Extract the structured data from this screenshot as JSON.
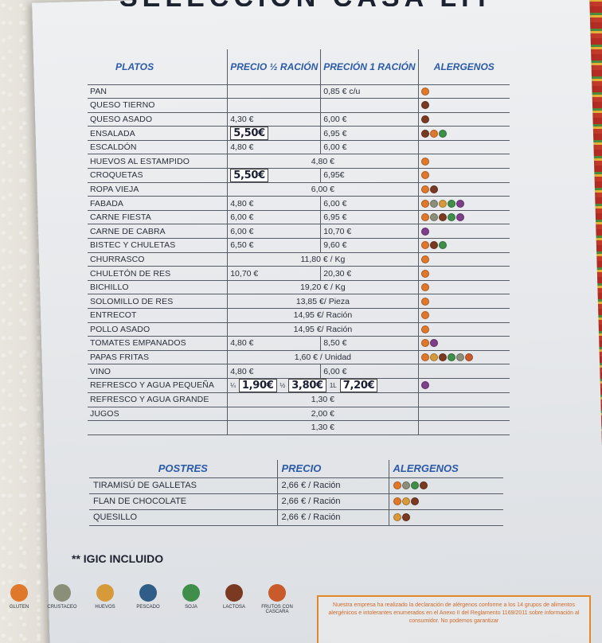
{
  "heading": "SELECCIÓN CASA LITO",
  "headers": {
    "dish": "PLATOS",
    "half": "PRECIO ½ RACIÓN",
    "full": "PRECIÓN 1 RACIÓN",
    "allergens": "ALERGENOS"
  },
  "rows": [
    {
      "dish": "PAN",
      "full": "0,85 € c/u",
      "allergens": [
        "gluten"
      ]
    },
    {
      "dish": "QUESO TIERNO",
      "allergens": [
        "lactosa"
      ]
    },
    {
      "dish": "QUESO ASADO",
      "half": "4,30 €",
      "full": "6,00 €",
      "allergens": [
        "lactosa"
      ]
    },
    {
      "dish": "ENSALADA",
      "half_hand": "5,50€",
      "full": "6,95 €",
      "allergens": [
        "lactosa",
        "gluten",
        "soja"
      ]
    },
    {
      "dish": "ESCALDÓN",
      "half": "4,80 €",
      "full": "6,00 €"
    },
    {
      "dish": "HUEVOS AL ESTAMPIDO",
      "span": "4,80 €",
      "allergens": [
        "gluten"
      ]
    },
    {
      "dish": "CROQUETAS",
      "half_hand": "5,50€",
      "full": "6,95€",
      "allergens": [
        "gluten"
      ]
    },
    {
      "dish": "ROPA VIEJA",
      "span": "6,00 €",
      "allergens": [
        "gluten",
        "lactosa"
      ]
    },
    {
      "dish": "FABADA",
      "half": "4,80 €",
      "full": "6,00 €",
      "allergens": [
        "gluten",
        "crustaceo",
        "huevos",
        "soja",
        "sulfitos"
      ]
    },
    {
      "dish": "CARNE FIESTA",
      "half": "6,00 €",
      "full": "6,95 €",
      "allergens": [
        "gluten",
        "crustaceo",
        "lactosa",
        "soja",
        "sulfitos"
      ]
    },
    {
      "dish": "CARNE DE CABRA",
      "half": "6,00 €",
      "full": "10,70 €",
      "allergens": [
        "sulfitos"
      ]
    },
    {
      "dish": "BISTEC Y CHULETAS",
      "half": "6,50 €",
      "full": "9,60 €",
      "allergens": [
        "gluten",
        "lactosa",
        "soja"
      ]
    },
    {
      "dish": "CHURRASCO",
      "span": "11,80 € / Kg",
      "allergens": [
        "gluten"
      ]
    },
    {
      "dish": "CHULETÓN DE RES",
      "half": "10,70 €",
      "full": "20,30 €",
      "allergens": [
        "gluten"
      ]
    },
    {
      "dish": "BICHILLO",
      "span": "19,20 € / Kg",
      "allergens": [
        "gluten"
      ]
    },
    {
      "dish": "SOLOMILLO DE RES",
      "span": "13,85 €/ Pieza",
      "allergens": [
        "gluten"
      ]
    },
    {
      "dish": "ENTRECOT",
      "span": "14,95 €/ Ración",
      "allergens": [
        "gluten"
      ]
    },
    {
      "dish": "POLLO ASADO",
      "span": "14,95 €/ Ración",
      "allergens": [
        "gluten"
      ]
    },
    {
      "dish": "TOMATES EMPANADOS",
      "half": "4,80 €",
      "full": "8,50 €",
      "allergens": [
        "gluten",
        "sulfitos"
      ]
    },
    {
      "dish": "PAPAS FRITAS",
      "span": "1,60 € / Unidad",
      "allergens": [
        "gluten",
        "huevos",
        "lactosa",
        "soja",
        "crustaceo",
        "frutos"
      ]
    },
    {
      "dish": "VINO",
      "half": "4,80 €",
      "full": "6,00 €"
    },
    {
      "dish": "REFRESCO Y AGUA PEQUEÑA",
      "wine": {
        "q": "¼",
        "q_price": "1,90€",
        "h": "½",
        "h_price": "3,80€",
        "l": "1L",
        "l_price": "7,20€"
      },
      "allergens": [
        "sulfitos"
      ]
    },
    {
      "dish": "REFRESCO Y AGUA GRANDE",
      "span": "1,30 €"
    },
    {
      "dish": "JUGOS",
      "span": "2,00 €"
    },
    {
      "dish": "",
      "span": "1,30 €"
    }
  ],
  "desserts": {
    "headers": {
      "name": "POSTRES",
      "price": "PRECIO",
      "allergens": "ALERGENOS"
    },
    "rows": [
      {
        "name": "TIRAMISÚ DE GALLETAS",
        "price": "2,66 € / Ración",
        "allergens": [
          "gluten",
          "crustaceo",
          "soja",
          "lactosa"
        ]
      },
      {
        "name": "FLAN DE CHOCOLATE",
        "price": "2,66 € / Ración",
        "allergens": [
          "gluten",
          "huevos",
          "lactosa"
        ]
      },
      {
        "name": "QUESILLO",
        "price": "2,66 € / Ración",
        "allergens": [
          "huevos",
          "lactosa"
        ]
      }
    ]
  },
  "igic": "** IGIC INCLUIDO",
  "legend": [
    {
      "label": "GLUTEN",
      "icon": "gluten-icon"
    },
    {
      "label": "CRUSTACEO",
      "icon": "crustaceo-icon"
    },
    {
      "label": "HUEVOS",
      "icon": "huevos-icon"
    },
    {
      "label": "PESCADO",
      "icon": "pescado-icon"
    },
    {
      "label": "SOJA",
      "icon": "soja-icon"
    },
    {
      "label": "LACTOSA",
      "icon": "lactosa-icon"
    },
    {
      "label": "FRUTOS CON CASCARA",
      "icon": "frutos-icon"
    }
  ],
  "notice": "Nuestra empresa ha realizado la declaración de alérgenos conforme a los 14 grupos de alimentos alergénicos e intolerantes enumerados en el Anexo II del Reglamento 1169/2011 sobre información al consumidor. No podemos garantizar",
  "colors": {
    "gluten": "#e0782b",
    "crustaceo": "#8b8f7a",
    "huevos": "#d79a3a",
    "pescado": "#2f5d88",
    "soja": "#3f8f4a",
    "lactosa": "#7a3a22",
    "sulfitos": "#7e3e8a",
    "frutos": "#c95a2b"
  }
}
